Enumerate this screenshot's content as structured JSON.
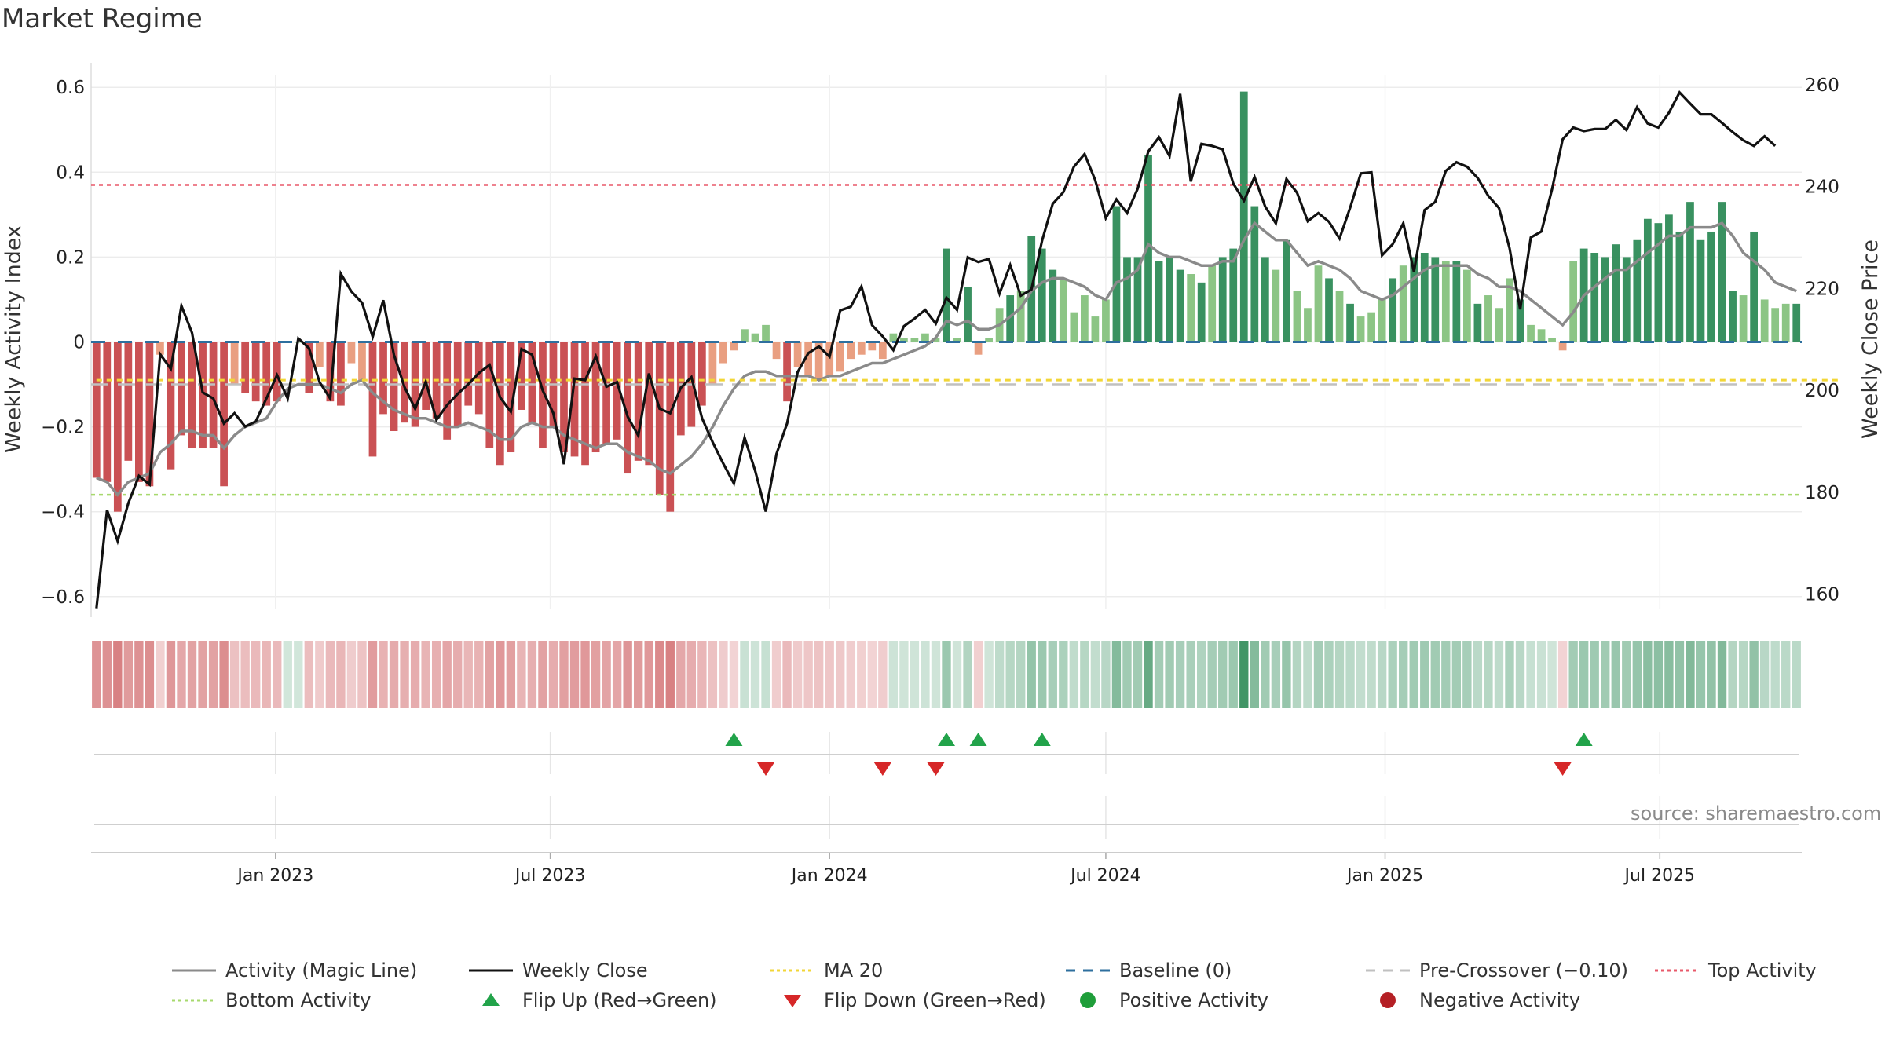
{
  "title": "Market Regime",
  "source": "source: sharemaestro.com",
  "colors": {
    "activity": "#8a8a8a",
    "close": "#111111",
    "ma20": "#f2d637",
    "baseline": "#2e6f9e",
    "pre": "#c0c0c0",
    "top": "#e8596a",
    "bottom": "#a7d96d",
    "pos_dark": "#2e8b57",
    "pos_light": "#86c27e",
    "neg_dark": "#c7484b",
    "neg_light": "#e89a7a",
    "flip_up": "#22a34a",
    "flip_down": "#d62728"
  },
  "chart_data": {
    "type": "bar",
    "start_date": "2022-09-05",
    "interval_days": 7,
    "ylabel_left": "Weekly Activity Index",
    "ylabel_right": "Weekly Close Price",
    "ylim_left": [
      -0.63,
      0.63
    ],
    "ylim_right": [
      157,
      262
    ],
    "yticks_left": [
      "0.6",
      "0.4",
      "0.2",
      "0",
      "−0.2",
      "−0.4",
      "−0.6"
    ],
    "yticks_right": [
      "260",
      "240",
      "220",
      "200",
      "180",
      "160"
    ],
    "xticks": [
      {
        "date": "2023-01-01",
        "label": "Jan 2023"
      },
      {
        "date": "2023-07-01",
        "label": "Jul 2023"
      },
      {
        "date": "2024-01-01",
        "label": "Jan 2024"
      },
      {
        "date": "2024-07-01",
        "label": "Jul 2024"
      },
      {
        "date": "2025-01-01",
        "label": "Jan 2025"
      },
      {
        "date": "2025-07-01",
        "label": "Jul 2025"
      }
    ],
    "top_activity": 0.37,
    "bottom_activity": -0.36,
    "pre_crossover": -0.1,
    "baseline": 0,
    "series": [
      {
        "name": "Weekly Activity Index",
        "values": [
          -0.32,
          -0.33,
          -0.4,
          -0.28,
          -0.33,
          -0.34,
          -0.03,
          -0.3,
          -0.22,
          -0.25,
          -0.25,
          -0.25,
          -0.34,
          -0.1,
          -0.12,
          -0.14,
          -0.15,
          -0.14,
          0,
          0,
          -0.12,
          -0.06,
          -0.14,
          -0.15,
          -0.05,
          -0.09,
          -0.27,
          -0.17,
          -0.21,
          -0.19,
          -0.2,
          -0.16,
          -0.18,
          -0.23,
          -0.2,
          -0.15,
          -0.17,
          -0.25,
          -0.29,
          -0.26,
          -0.16,
          -0.19,
          -0.25,
          -0.2,
          -0.26,
          -0.27,
          -0.29,
          -0.26,
          -0.24,
          -0.23,
          -0.31,
          -0.28,
          -0.29,
          -0.36,
          -0.4,
          -0.22,
          -0.2,
          -0.15,
          -0.1,
          -0.05,
          -0.02,
          0.03,
          0.02,
          0.04,
          -0.04,
          -0.14,
          -0.06,
          -0.08,
          -0.09,
          -0.08,
          -0.07,
          -0.04,
          -0.03,
          -0.02,
          -0.04,
          0.02,
          0.01,
          0.01,
          0.02,
          0.01,
          0.22,
          0.01,
          0.13,
          -0.03,
          0.01,
          0.08,
          0.11,
          0.12,
          0.25,
          0.22,
          0.17,
          0.15,
          0.07,
          0.11,
          0.06,
          0.1,
          0.32,
          0.2,
          0.2,
          0.44,
          0.19,
          0.2,
          0.17,
          0.16,
          0.14,
          0.18,
          0.2,
          0.22,
          0.59,
          0.32,
          0.2,
          0.17,
          0.24,
          0.12,
          0.08,
          0.18,
          0.15,
          0.12,
          0.09,
          0.06,
          0.07,
          0.1,
          0.15,
          0.18,
          0.2,
          0.21,
          0.2,
          0.19,
          0.19,
          0.17,
          0.09,
          0.11,
          0.08,
          0.15,
          0.1,
          0.04,
          0.03,
          0.01,
          -0.02,
          0.19,
          0.22,
          0.21,
          0.2,
          0.23,
          0.2,
          0.24,
          0.29,
          0.28,
          0.3,
          0.26,
          0.33,
          0.24,
          0.26,
          0.33,
          0.12,
          0.11,
          0.26,
          0.1,
          0.08,
          0.09,
          0.09
        ]
      },
      {
        "name": "Activity (Magic Line)",
        "values": [
          -0.32,
          -0.33,
          -0.36,
          -0.33,
          -0.32,
          -0.31,
          -0.26,
          -0.24,
          -0.21,
          -0.21,
          -0.22,
          -0.22,
          -0.25,
          -0.22,
          -0.2,
          -0.19,
          -0.18,
          -0.14,
          -0.11,
          -0.1,
          -0.1,
          -0.1,
          -0.11,
          -0.12,
          -0.1,
          -0.09,
          -0.12,
          -0.14,
          -0.16,
          -0.17,
          -0.18,
          -0.18,
          -0.19,
          -0.2,
          -0.2,
          -0.19,
          -0.2,
          -0.21,
          -0.23,
          -0.23,
          -0.2,
          -0.19,
          -0.2,
          -0.2,
          -0.22,
          -0.23,
          -0.24,
          -0.25,
          -0.24,
          -0.24,
          -0.26,
          -0.27,
          -0.28,
          -0.3,
          -0.31,
          -0.29,
          -0.27,
          -0.24,
          -0.2,
          -0.15,
          -0.11,
          -0.08,
          -0.07,
          -0.07,
          -0.08,
          -0.08,
          -0.08,
          -0.08,
          -0.09,
          -0.08,
          -0.08,
          -0.07,
          -0.06,
          -0.05,
          -0.05,
          -0.04,
          -0.03,
          -0.02,
          -0.01,
          0.01,
          0.05,
          0.04,
          0.05,
          0.03,
          0.03,
          0.04,
          0.06,
          0.08,
          0.12,
          0.14,
          0.15,
          0.15,
          0.14,
          0.13,
          0.11,
          0.1,
          0.14,
          0.15,
          0.17,
          0.23,
          0.21,
          0.2,
          0.2,
          0.19,
          0.18,
          0.18,
          0.19,
          0.19,
          0.24,
          0.28,
          0.26,
          0.24,
          0.24,
          0.21,
          0.18,
          0.19,
          0.18,
          0.17,
          0.15,
          0.12,
          0.11,
          0.1,
          0.11,
          0.13,
          0.15,
          0.17,
          0.18,
          0.18,
          0.18,
          0.18,
          0.16,
          0.15,
          0.13,
          0.13,
          0.12,
          0.1,
          0.08,
          0.06,
          0.04,
          0.07,
          0.11,
          0.13,
          0.15,
          0.17,
          0.17,
          0.19,
          0.21,
          0.23,
          0.25,
          0.25,
          0.27,
          0.27,
          0.27,
          0.28,
          0.25,
          0.21,
          0.19,
          0.17,
          0.14,
          0.13,
          0.12
        ]
      },
      {
        "name": "Weekly Close",
        "values": [
          157.2,
          176.5,
          170.4,
          177.8,
          183.2,
          181.5,
          207.1,
          204.2,
          216.6,
          211.3,
          199.6,
          198.4,
          193.5,
          195.5,
          192.9,
          193.9,
          198.4,
          203.0,
          198.4,
          210.2,
          208.3,
          201.6,
          198.4,
          222.9,
          219.4,
          217.2,
          210.5,
          217.7,
          207.0,
          200.6,
          196.4,
          201.7,
          194.2,
          197.1,
          199.3,
          201.2,
          203.4,
          205.0,
          198.6,
          195.8,
          208.1,
          207.0,
          200.0,
          195.5,
          185.5,
          202.3,
          202.0,
          206.7,
          200.7,
          201.6,
          194.8,
          191.1,
          203.3,
          196.4,
          195.5,
          200.5,
          202.6,
          194.5,
          189.8,
          185.6,
          181.7,
          190.7,
          184.2,
          176.2,
          187.5,
          193.5,
          203.6,
          207.3,
          208.6,
          206.6,
          215.7,
          216.4,
          220.4,
          212.8,
          210.6,
          207.9,
          212.6,
          214.1,
          215.8,
          213.1,
          218.2,
          215.8,
          226.1,
          225.2,
          225.8,
          219.0,
          224.6,
          218.6,
          219.8,
          229.4,
          236.6,
          238.9,
          243.9,
          246.4,
          241.3,
          233.8,
          237.5,
          234.8,
          239.6,
          246.9,
          249.7,
          246.0,
          258.2,
          241.0,
          248.4,
          248.0,
          247.3,
          240.6,
          237.2,
          241.9,
          236.1,
          232.8,
          241.5,
          238.8,
          233.2,
          234.8,
          233.1,
          229.8,
          235.9,
          242.6,
          242.8,
          226.5,
          228.7,
          232.8,
          223.3,
          235.4,
          237.0,
          243.1,
          244.8,
          243.9,
          241.7,
          238.2,
          235.8,
          227.9,
          215.9,
          230.0,
          231.2,
          239.5,
          249.3,
          251.6,
          250.9,
          251.3,
          251.3,
          253.1,
          251.1,
          255.6,
          252.4,
          251.6,
          254.5,
          258.5,
          256.3,
          254.2,
          254.2,
          252.5,
          250.7,
          249.1,
          248.0,
          249.9,
          248.0
        ]
      },
      {
        "name": "MA 20",
        "values": [
          202.0,
          202.0,
          202.0,
          202.0,
          202.0,
          202.0,
          202.0,
          202.0,
          202.0,
          202.0,
          202.0,
          202.0,
          202.0,
          202.0,
          202.0,
          202.0,
          202.0,
          202.0,
          202.0,
          202.0,
          202.0,
          202.0,
          202.0,
          202.0,
          202.0,
          202.0,
          202.0,
          202.0,
          202.0,
          202.0,
          202.0,
          202.0,
          202.0,
          202.0,
          202.0,
          202.0,
          202.0,
          202.0,
          202.0,
          202.0,
          202.0,
          202.0,
          202.0,
          202.0,
          202.0,
          202.0,
          202.0,
          202.0,
          202.0,
          202.0,
          202.0,
          202.0,
          202.0,
          202.0,
          202.0,
          202.0,
          202.0,
          202.0,
          202.0,
          202.0,
          202.0,
          202.0,
          202.0,
          202.0,
          202.0,
          202.0,
          202.0,
          202.0,
          202.0,
          202.0,
          202.0,
          202.0,
          202.0,
          202.0,
          202.0,
          202.0,
          202.0,
          202.0,
          202.0,
          202.0,
          202.0,
          202.0,
          202.0,
          202.0,
          202.0,
          202.0,
          202.0,
          202.0,
          202.0,
          202.0,
          202.0,
          202.0,
          202.0,
          202.0,
          202.0,
          202.0,
          202.0,
          202.0,
          202.0,
          202.0,
          202.0,
          202.0,
          202.0,
          202.0,
          202.0,
          202.0,
          202.0,
          202.0,
          202.0,
          202.0,
          202.0,
          202.0,
          202.0,
          202.0,
          202.0,
          202.0,
          202.0,
          202.0,
          202.0,
          202.0,
          202.0,
          202.0,
          202.0,
          202.0,
          202.0,
          202.0,
          202.0,
          202.0,
          202.0,
          202.0,
          202.0,
          202.0,
          202.0,
          202.0,
          202.0,
          202.0,
          202.0,
          202.0,
          202.0,
          202.0,
          202.0,
          202.0,
          202.0,
          202.0,
          202.0,
          202.0,
          202.0,
          202.0,
          202.0,
          202.0,
          202.0,
          202.0,
          202.0,
          202.0,
          202.0,
          202.0,
          202.0,
          202.0,
          202.0,
          202.0,
          202.0,
          202.0,
          202.0,
          202.0,
          202.0
        ]
      }
    ],
    "flip_up_weeks": [
      60,
      80,
      83,
      89,
      140
    ],
    "flip_down_weeks": [
      63,
      74,
      79,
      138
    ],
    "legend": [
      "Activity (Magic Line)",
      "Weekly Close",
      "MA 20",
      "Baseline (0)",
      "Pre-Crossover (−0.10)",
      "Top Activity",
      "Bottom Activity",
      "Flip Up (Red→Green)",
      "Flip Down (Green→Red)",
      "Positive Activity",
      "Negative Activity"
    ]
  }
}
